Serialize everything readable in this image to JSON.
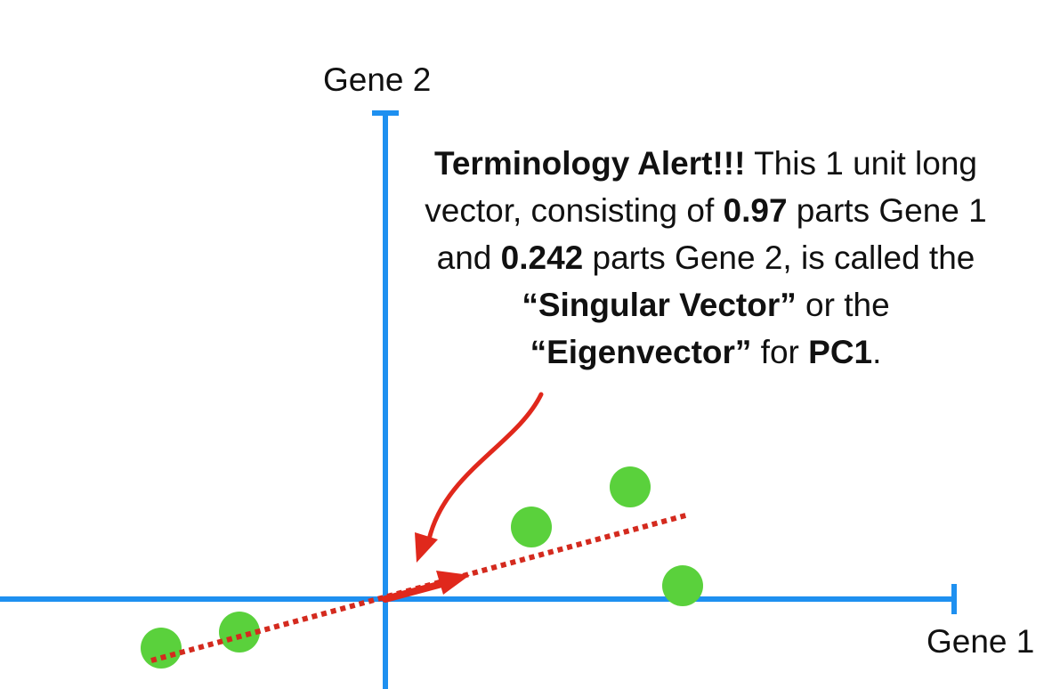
{
  "axes": {
    "x_label": "Gene 1",
    "y_label": "Gene 2"
  },
  "callout": {
    "bold_1": "Terminology Alert!!!",
    "text_1": " This 1 unit long vector, consisting of ",
    "bold_2": "0.97",
    "text_2": " parts Gene 1 and ",
    "bold_3": "0.242",
    "text_3": " parts Gene 2, is called the ",
    "bold_4": "“Singular Vector”",
    "text_4": " or the ",
    "bold_5": "“Eigenvector”",
    "text_5": " for ",
    "bold_6": "PC1",
    "text_6": "."
  },
  "colors": {
    "axis": "#1e90f0",
    "points": "#5ad13c",
    "pc_line": "#d42a1e",
    "arrow": "#e0281c",
    "text": "#111111"
  }
}
